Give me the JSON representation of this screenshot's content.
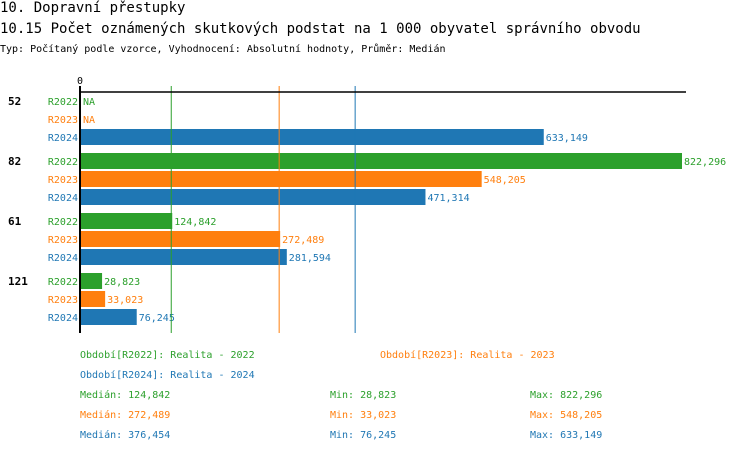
{
  "header": {
    "title": "10. Dopravní přestupky",
    "subtitle": "10.15 Počet oznámených skutkových podstat na 1 000 obyvatel správního obvodu",
    "meta": "Typ: Počítaný podle vzorce, Vyhodnocení: Absolutní hodnoty, Průměr: Medián"
  },
  "colors": {
    "R2022": "#2ca02c",
    "R2023": "#ff7f0e",
    "R2024": "#1f77b4"
  },
  "chart_data": {
    "type": "bar",
    "orientation": "horizontal",
    "x_tick_label": "0",
    "xlim": [
      0,
      822.296
    ],
    "categories": [
      "52",
      "82",
      "61",
      "121"
    ],
    "series": [
      {
        "name": "R2022",
        "values": [
          null,
          822.296,
          124.842,
          28.823
        ],
        "labels": [
          "NA",
          "822,296",
          "124,842",
          "28,823"
        ]
      },
      {
        "name": "R2023",
        "values": [
          null,
          548.205,
          272.489,
          33.023
        ],
        "labels": [
          "NA",
          "548,205",
          "272,489",
          "33,023"
        ]
      },
      {
        "name": "R2024",
        "values": [
          633.149,
          471.314,
          281.594,
          76.245
        ],
        "labels": [
          "633,149",
          "471,314",
          "281,594",
          "76,245"
        ]
      }
    ],
    "median_lines": [
      124.842,
      272.489,
      376.454
    ],
    "legend": [
      "Období[R2022]: Realita - 2022",
      "Období[R2023]: Realita - 2023",
      "Období[R2024]: Realita - 2024"
    ],
    "stats": [
      {
        "median": "Medián: 124,842",
        "min": "Min: 28,823",
        "max": "Max: 822,296"
      },
      {
        "median": "Medián: 272,489",
        "min": "Min: 33,023",
        "max": "Max: 548,205"
      },
      {
        "median": "Medián: 376,454",
        "min": "Min: 76,245",
        "max": "Max: 633,149"
      }
    ]
  }
}
